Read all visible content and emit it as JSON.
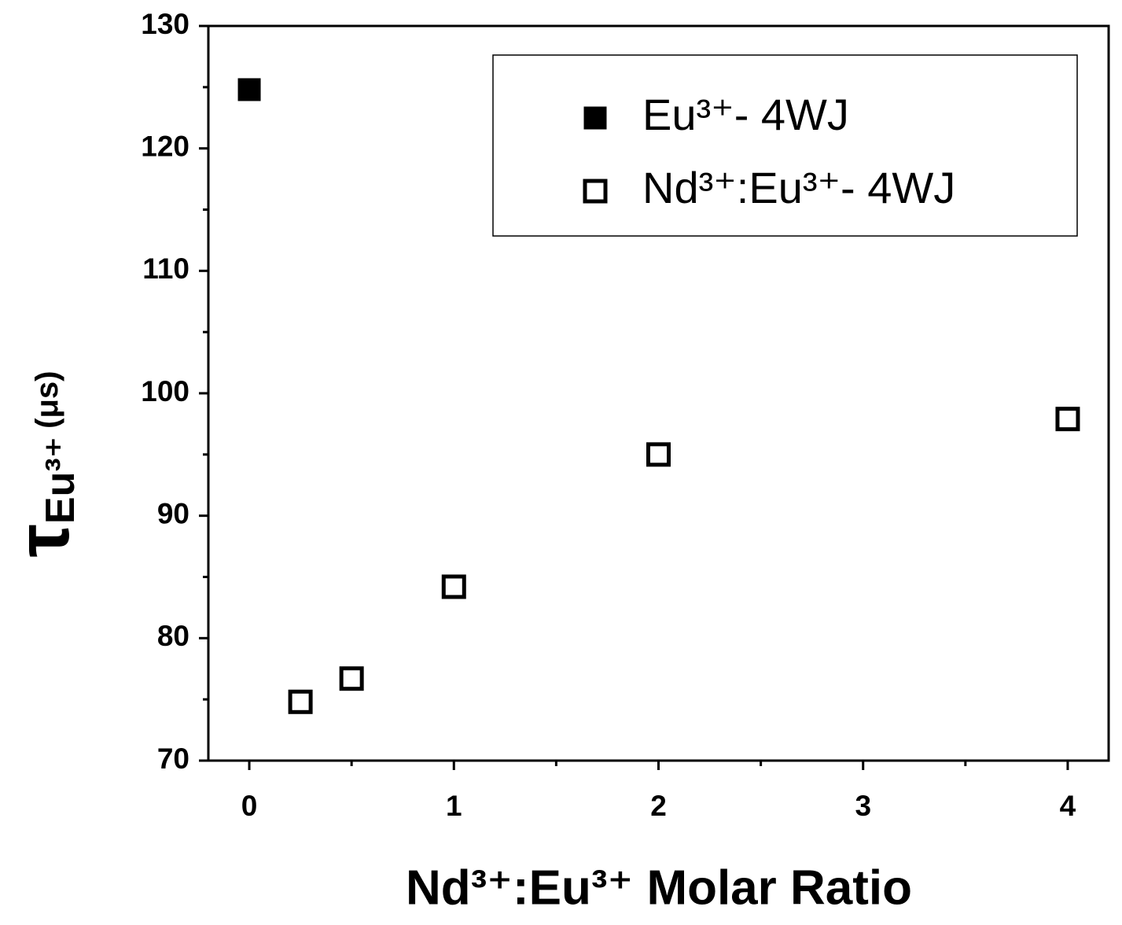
{
  "chart_data": {
    "type": "scatter",
    "xlabel": "Nd³⁺:Eu³⁺ Molar Ratio",
    "ylabel": {
      "symbol": "τ",
      "subscript": "Eu³⁺",
      "unit": "(μs)"
    },
    "xlim": [
      -0.2,
      4.2
    ],
    "xticks": [
      0,
      1,
      2,
      3,
      4
    ],
    "minor_xticks": [
      0.5,
      1.5,
      2.5,
      3.5
    ],
    "ylim": [
      70,
      130
    ],
    "yticks": [
      70,
      80,
      90,
      100,
      110,
      120,
      130
    ],
    "minor_yticks": [
      75,
      85,
      95,
      105,
      115,
      125
    ],
    "legend": "upper right",
    "series": [
      {
        "name": "Eu³⁺- 4WJ",
        "color": "#000000",
        "marker": "filled",
        "x": [
          0
        ],
        "values": [
          124.8
        ]
      },
      {
        "name": "Nd³⁺:Eu³⁺- 4WJ",
        "color": "#000000",
        "marker": "open",
        "x": [
          0.25,
          0.5,
          1,
          2,
          4
        ],
        "values": [
          74.8,
          76.7,
          84.2,
          95.0,
          97.9
        ]
      }
    ]
  }
}
